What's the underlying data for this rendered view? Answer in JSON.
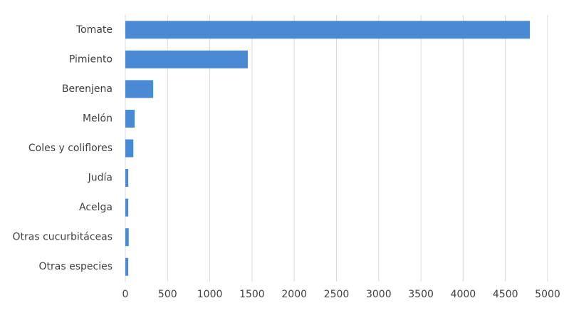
{
  "chart_data": {
    "type": "hbar",
    "categories": [
      "Tomate",
      "Pimiento",
      "Berenjena",
      "Melón",
      "Coles y coliflores",
      "Judía",
      "Acelga",
      "Otras cucurbitáceas",
      "Otras especies"
    ],
    "values": [
      4790,
      1450,
      330,
      110,
      95,
      35,
      35,
      40,
      35
    ],
    "color": "#4a89d3",
    "xlim": [
      0,
      5000
    ],
    "xticks": [
      0,
      500,
      1000,
      1500,
      2000,
      2500,
      3000,
      3500,
      4000,
      4500,
      5000
    ],
    "grid": true
  }
}
